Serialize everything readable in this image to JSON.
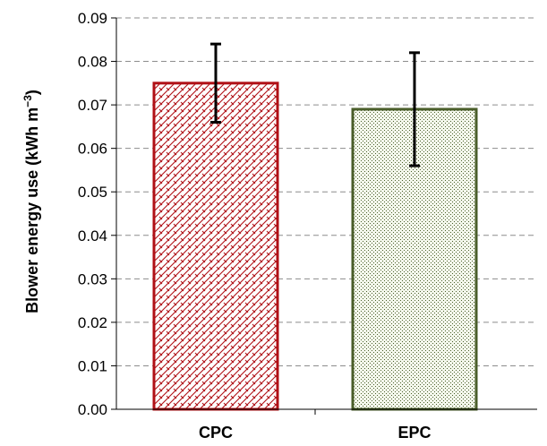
{
  "chart_data": {
    "type": "bar",
    "categories": [
      "CPC",
      "EPC"
    ],
    "values": [
      0.075,
      0.069
    ],
    "error_low": [
      0.066,
      0.056
    ],
    "error_high": [
      0.084,
      0.082
    ],
    "ylabel_main": "Blower energy use (kWh m",
    "ylabel_sup": "−3",
    "ylabel_end": ")",
    "ylim": [
      0,
      0.09
    ],
    "yticks": [
      "0.00",
      "0.01",
      "0.02",
      "0.03",
      "0.04",
      "0.05",
      "0.06",
      "0.07",
      "0.08",
      "0.09"
    ],
    "grid": true,
    "bar_styles": [
      {
        "stroke": "#b01016",
        "pattern": "crosshatch",
        "pattern_color": "#b01016"
      },
      {
        "stroke": "#4a5e2a",
        "pattern": "dots",
        "pattern_color": "#4a5e2a"
      }
    ]
  }
}
